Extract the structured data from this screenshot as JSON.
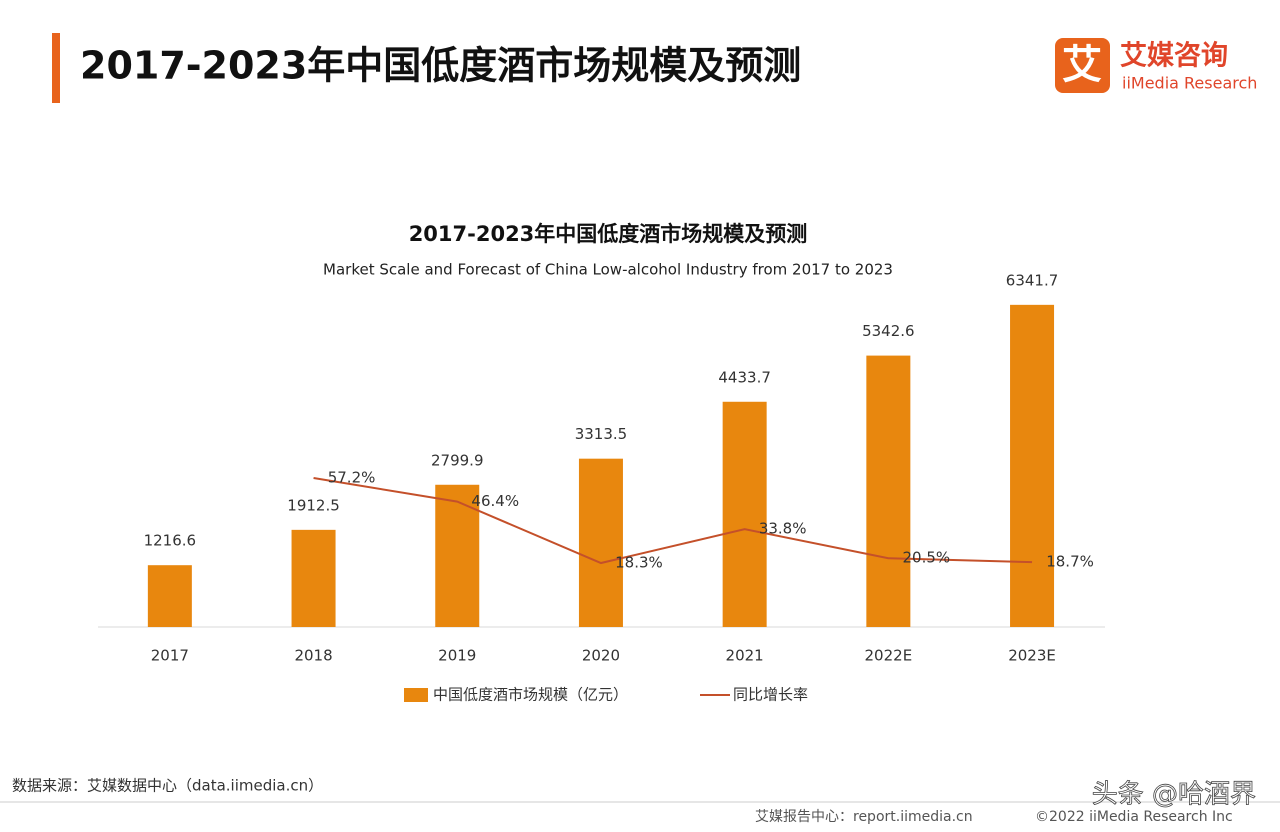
{
  "header": {
    "title": "2017-2023年中国低度酒市场规模及预测",
    "logo_mark": "艾",
    "logo_name": "艾媒咨询",
    "logo_sub": "iiMedia Research"
  },
  "chart_data": {
    "type": "bar",
    "title": "2017-2023年中国低度酒市场规模及预测",
    "subtitle": "Market Scale and Forecast of China Low-alcohol Industry from 2017 to 2023",
    "categories": [
      "2017",
      "2018",
      "2019",
      "2020",
      "2021",
      "2022E",
      "2023E"
    ],
    "series": [
      {
        "name": "中国低度酒市场规模（亿元）",
        "color": "#e8870e",
        "type": "bar",
        "values": [
          1216.6,
          1912.5,
          2799.9,
          3313.5,
          4433.7,
          5342.6,
          6341.7
        ]
      },
      {
        "name": "同比增长率",
        "color": "#c4502a",
        "type": "line",
        "axis": "y2",
        "values": [
          null,
          57.2,
          46.4,
          18.3,
          33.8,
          20.5,
          18.7
        ],
        "value_labels": [
          null,
          "57.2%",
          "46.4%",
          "18.3%",
          "33.8%",
          "20.5%",
          "18.7%"
        ]
      }
    ],
    "legend": "bottom"
  },
  "footer": {
    "source": "数据来源：艾媒数据中心（data.iimedia.cn）",
    "report": "艾媒报告中心：report.iimedia.cn",
    "copyright": "©2022  iiMedia Research  Inc",
    "watermark": "头条 @哈酒界"
  }
}
